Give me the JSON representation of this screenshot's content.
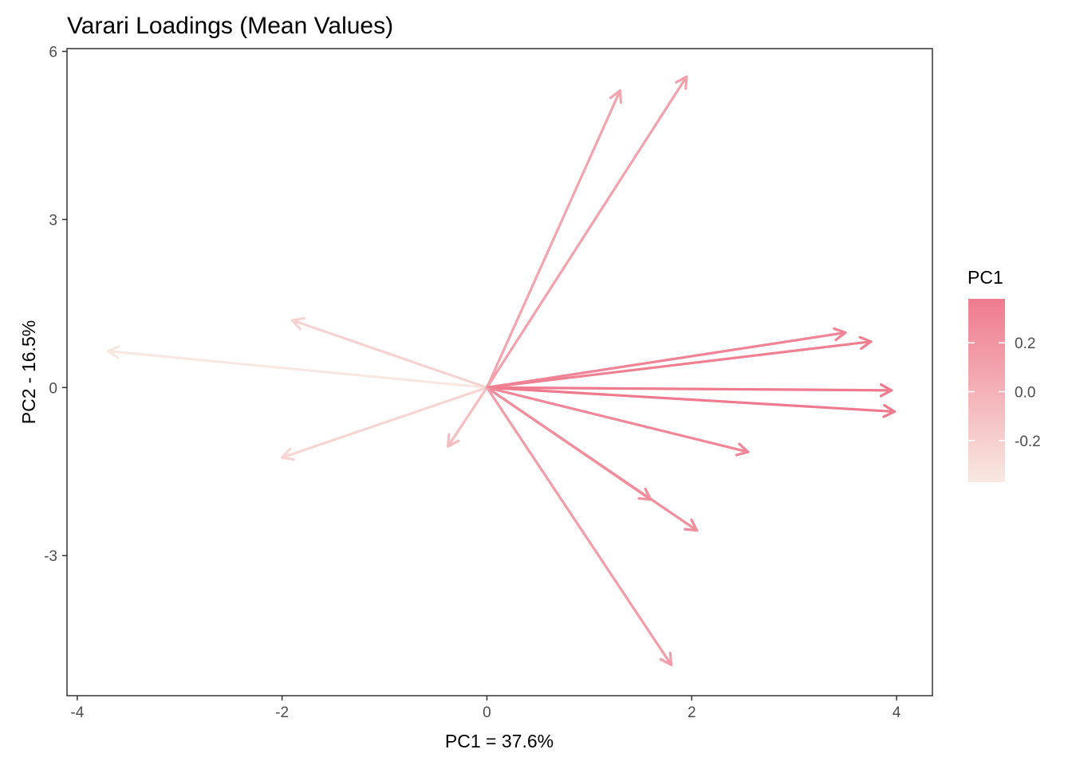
{
  "chart_data": {
    "type": "vector-plot",
    "title": "Varari Loadings (Mean Values)",
    "xlabel": "PC1 = 37.6%",
    "ylabel": "PC2 - 16.5%",
    "xlim": [
      -4.1,
      4.35
    ],
    "ylim": [
      -5.5,
      6.05
    ],
    "x_ticks": [
      -4,
      -2,
      0,
      2,
      4
    ],
    "y_ticks": [
      -3,
      0,
      3,
      6
    ],
    "x_tick_labels": [
      "-4",
      "-2",
      "0",
      "2",
      "4"
    ],
    "y_tick_labels": [
      "-3",
      "0",
      "3",
      "6"
    ],
    "grid": false,
    "legend": {
      "title": "PC1",
      "placement": "right",
      "range": [
        -0.37,
        0.38
      ],
      "ticks": [
        0.2,
        0.0,
        -0.2
      ],
      "tick_labels": [
        "0.2",
        "0.0",
        "-0.2"
      ],
      "color_low": "#f8e8e1",
      "color_high": "#ef7a8e"
    },
    "arrows": [
      {
        "x": -3.7,
        "y": 0.65,
        "pc1": -0.37
      },
      {
        "x": -1.9,
        "y": 1.2,
        "pc1": -0.23
      },
      {
        "x": -2.0,
        "y": -1.25,
        "pc1": -0.24
      },
      {
        "x": -0.38,
        "y": -1.05,
        "pc1": -0.08
      },
      {
        "x": 1.3,
        "y": 5.3,
        "pc1": 0.09
      },
      {
        "x": 1.95,
        "y": 5.55,
        "pc1": 0.11
      },
      {
        "x": 3.5,
        "y": 0.98,
        "pc1": 0.32
      },
      {
        "x": 3.75,
        "y": 0.82,
        "pc1": 0.34
      },
      {
        "x": 3.95,
        "y": -0.05,
        "pc1": 0.37
      },
      {
        "x": 3.98,
        "y": -0.43,
        "pc1": 0.38
      },
      {
        "x": 2.55,
        "y": -1.15,
        "pc1": 0.3
      },
      {
        "x": 1.6,
        "y": -2.0,
        "pc1": 0.24
      },
      {
        "x": 2.05,
        "y": -2.55,
        "pc1": 0.25
      },
      {
        "x": 1.8,
        "y": -4.95,
        "pc1": 0.14
      }
    ]
  }
}
